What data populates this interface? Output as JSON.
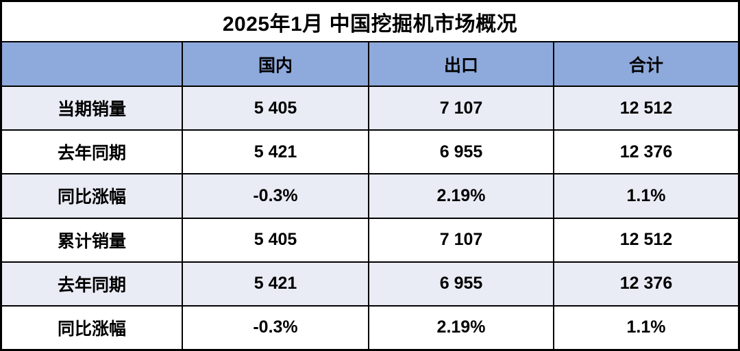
{
  "table": {
    "title": "2025年1月 中国挖掘机市场概况",
    "header": {
      "cells": [
        "",
        "国内",
        "出口",
        "合计"
      ]
    },
    "rows": [
      {
        "cells": [
          "当期销量",
          "5 405",
          "7 107",
          "12 512"
        ]
      },
      {
        "cells": [
          "去年同期",
          "5 421",
          "6 955",
          "12 376"
        ]
      },
      {
        "cells": [
          "同比涨幅",
          "-0.3%",
          "2.19%",
          "1.1%"
        ]
      },
      {
        "cells": [
          "累计销量",
          "5 405",
          "7 107",
          "12 512"
        ]
      },
      {
        "cells": [
          "去年同期",
          "5 421",
          "6 955",
          "12 376"
        ]
      },
      {
        "cells": [
          "同比涨幅",
          "-0.3%",
          "2.19%",
          "1.1%"
        ]
      }
    ]
  },
  "colors": {
    "header_bg": "#8EA9DB",
    "row_alt_bg": "#E9EBF5",
    "row_plain_bg": "#FFFFFF",
    "border": "#000000",
    "text": "#000000"
  },
  "chart_data": {
    "type": "table",
    "title": "2025年1月 中国挖掘机市场概况",
    "columns": [
      "",
      "国内",
      "出口",
      "合计"
    ],
    "rows": [
      [
        "当期销量",
        "5 405",
        "7 107",
        "12 512"
      ],
      [
        "去年同期",
        "5 421",
        "6 955",
        "12 376"
      ],
      [
        "同比涨幅",
        "-0.3%",
        "2.19%",
        "1.1%"
      ],
      [
        "累计销量",
        "5 405",
        "7 107",
        "12 512"
      ],
      [
        "去年同期",
        "5 421",
        "6 955",
        "12 376"
      ],
      [
        "同比涨幅",
        "-0.3%",
        "2.19%",
        "1.1%"
      ]
    ]
  }
}
